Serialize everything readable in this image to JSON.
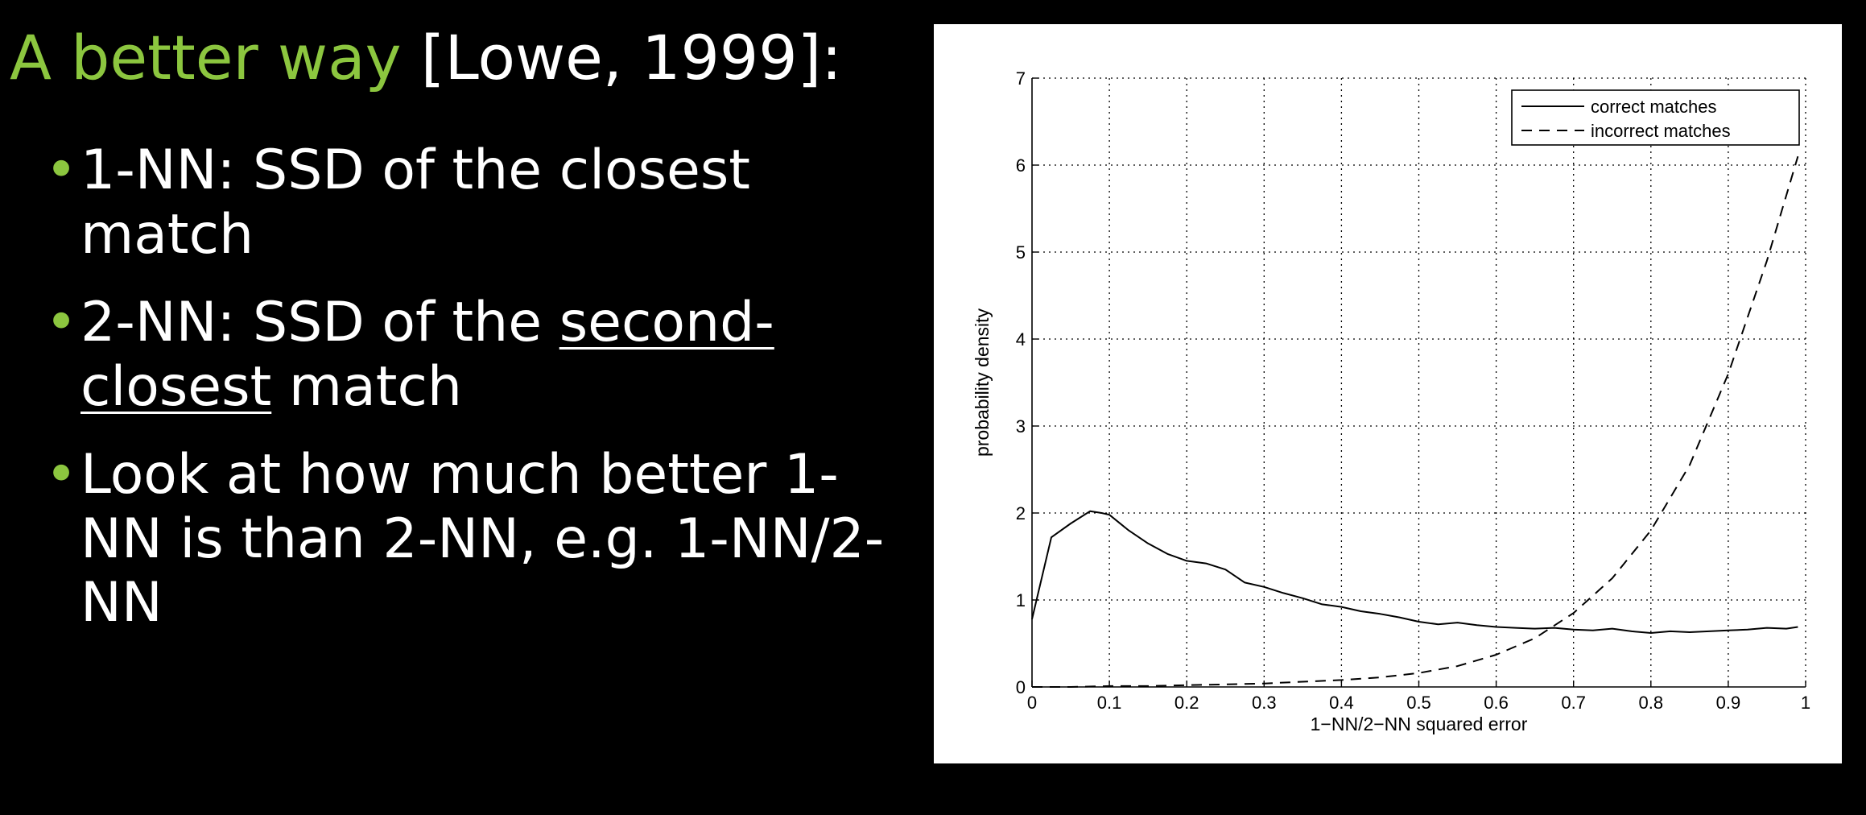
{
  "slide": {
    "title_accent": "A better way",
    "title_rest": "[Lowe, 1999]:",
    "bullets": [
      {
        "marker": "•",
        "parts": [
          {
            "text": "1-NN: SSD of the closest match",
            "underline": false
          }
        ]
      },
      {
        "marker": "•",
        "parts": [
          {
            "text": "2-NN: SSD of the ",
            "underline": false
          },
          {
            "text": "second-closest",
            "underline": true
          },
          {
            "text": " match",
            "underline": false
          }
        ]
      },
      {
        "marker": "•",
        "parts": [
          {
            "text": "Look at how much better 1-NN is than 2-NN, e.g. 1-NN/2-NN",
            "underline": false
          }
        ]
      }
    ],
    "accent_color": "#8cc63f",
    "background_color": "#000000"
  },
  "chart_data": {
    "type": "line",
    "title": "",
    "xlabel": "1−NN/2−NN squared error",
    "ylabel": "probability density",
    "xlim": [
      0,
      1
    ],
    "ylim": [
      0,
      7
    ],
    "x_ticks": [
      0,
      0.1,
      0.2,
      0.3,
      0.4,
      0.5,
      0.6,
      0.7,
      0.8,
      0.9,
      1
    ],
    "x_tick_labels": [
      "0",
      "0.1",
      "0.2",
      "0.3",
      "0.4",
      "0.5",
      "0.6",
      "0.7",
      "0.8",
      "0.9",
      "1"
    ],
    "y_ticks": [
      0,
      1,
      2,
      3,
      4,
      5,
      6,
      7
    ],
    "y_tick_labels": [
      "0",
      "1",
      "2",
      "3",
      "4",
      "5",
      "6",
      "7"
    ],
    "grid": true,
    "legend_position": "top-right",
    "series": [
      {
        "name": "correct matches",
        "style": "solid",
        "x": [
          0.0,
          0.025,
          0.05,
          0.075,
          0.09,
          0.1,
          0.125,
          0.15,
          0.175,
          0.2,
          0.225,
          0.25,
          0.275,
          0.3,
          0.325,
          0.35,
          0.375,
          0.4,
          0.425,
          0.45,
          0.475,
          0.5,
          0.525,
          0.55,
          0.575,
          0.6,
          0.625,
          0.65,
          0.675,
          0.7,
          0.725,
          0.75,
          0.775,
          0.8,
          0.825,
          0.85,
          0.875,
          0.9,
          0.925,
          0.95,
          0.975,
          0.99
        ],
        "values": [
          0.78,
          1.72,
          1.88,
          2.02,
          2.0,
          1.98,
          1.8,
          1.65,
          1.53,
          1.45,
          1.42,
          1.35,
          1.2,
          1.15,
          1.08,
          1.02,
          0.95,
          0.92,
          0.87,
          0.84,
          0.8,
          0.75,
          0.72,
          0.74,
          0.71,
          0.69,
          0.68,
          0.67,
          0.68,
          0.66,
          0.65,
          0.67,
          0.64,
          0.62,
          0.64,
          0.63,
          0.64,
          0.65,
          0.66,
          0.68,
          0.67,
          0.69
        ]
      },
      {
        "name": "incorrect matches",
        "style": "dashed",
        "x": [
          0.0,
          0.05,
          0.1,
          0.15,
          0.2,
          0.25,
          0.3,
          0.35,
          0.4,
          0.45,
          0.5,
          0.55,
          0.6,
          0.65,
          0.7,
          0.75,
          0.8,
          0.85,
          0.9,
          0.95,
          0.99
        ],
        "values": [
          0.0,
          0.0,
          0.01,
          0.01,
          0.02,
          0.03,
          0.04,
          0.06,
          0.08,
          0.11,
          0.16,
          0.24,
          0.37,
          0.56,
          0.85,
          1.25,
          1.8,
          2.55,
          3.6,
          4.9,
          6.1
        ]
      }
    ]
  }
}
